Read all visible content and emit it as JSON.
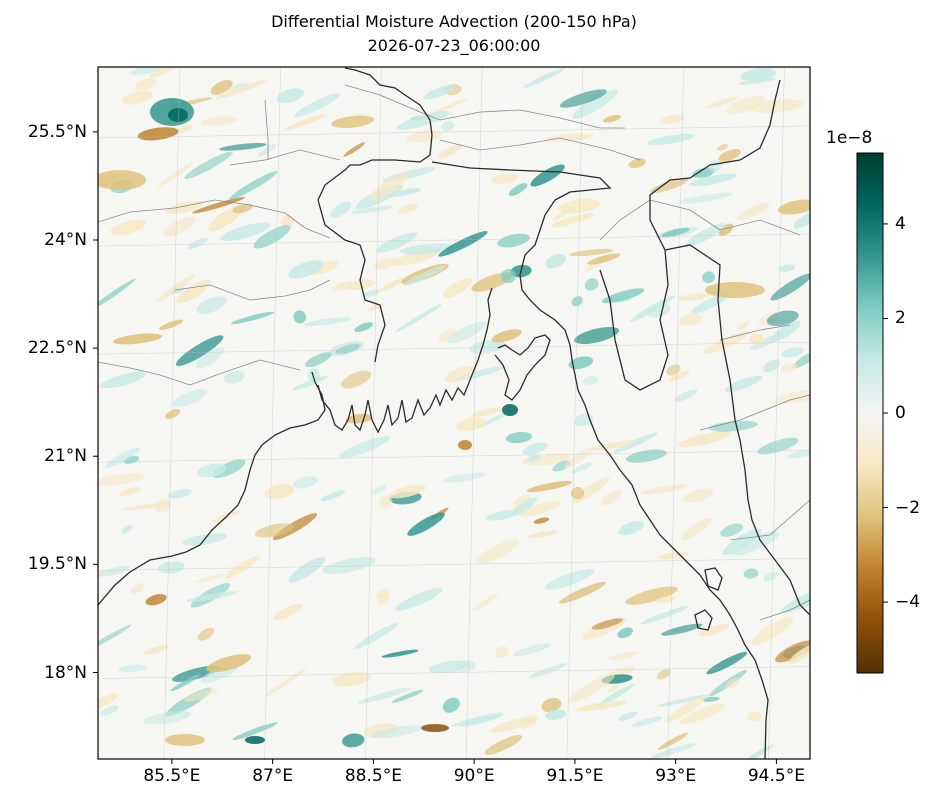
{
  "title": "Differential Moisture Advection (200-150 hPa)",
  "subtitle": "2026-07-23_06:00:00",
  "map": {
    "extent": {
      "lon_min": 84.4,
      "lon_max": 95.0,
      "lat_min": 16.8,
      "lat_max": 26.4
    },
    "lat_ticks": [
      {
        "value": 25.5,
        "label": "25.5°N"
      },
      {
        "value": 24.0,
        "label": "24°N"
      },
      {
        "value": 22.5,
        "label": "22.5°N"
      },
      {
        "value": 21.0,
        "label": "21°N"
      },
      {
        "value": 19.5,
        "label": "19.5°N"
      },
      {
        "value": 18.0,
        "label": "18°N"
      }
    ],
    "lon_ticks": [
      {
        "value": 85.5,
        "label": "85.5°E"
      },
      {
        "value": 87.0,
        "label": "87°E"
      },
      {
        "value": 88.5,
        "label": "88.5°E"
      },
      {
        "value": 90.0,
        "label": "90°E"
      },
      {
        "value": 91.5,
        "label": "91.5°E"
      },
      {
        "value": 93.0,
        "label": "93°E"
      },
      {
        "value": 94.5,
        "label": "94.5°E"
      }
    ],
    "gridlines": true,
    "field": "differential moisture advection, mostly near zero with small-scale alternating positive/negative streaks"
  },
  "colorbar": {
    "cmap": "BrBG",
    "range": [
      -5.5,
      5.5
    ],
    "exponent_label": "1e−8",
    "ticks": [
      {
        "value": 4,
        "label": "4"
      },
      {
        "value": 2,
        "label": "2"
      },
      {
        "value": 0,
        "label": "0"
      },
      {
        "value": -2,
        "label": "−2"
      },
      {
        "value": -4,
        "label": "−4"
      }
    ],
    "colors": [
      "#543005",
      "#8c510a",
      "#bf812d",
      "#dfc27d",
      "#f6e8c3",
      "#f5f5f5",
      "#c7eae5",
      "#80cdc1",
      "#35978f",
      "#01665e",
      "#003c30"
    ]
  }
}
